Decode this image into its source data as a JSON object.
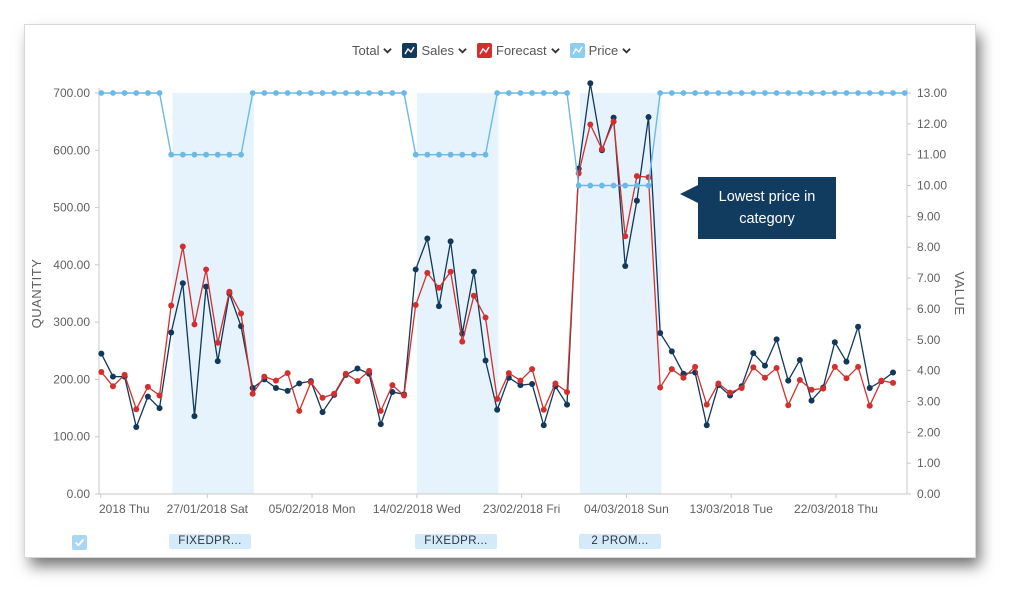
{
  "legend": {
    "total_label": "Total",
    "sales_label": "Sales",
    "forecast_label": "Forecast",
    "price_label": "Price",
    "icons": {
      "sales": "line-chart-icon",
      "forecast": "line-chart-icon",
      "price": "line-chart-icon",
      "chevron": "chevron-down-icon"
    }
  },
  "colors": {
    "sales": "#12385a",
    "forecast": "#d2302e",
    "price": "#6db9e6",
    "promo_band": "#e6f3fc",
    "annotation_bg": "#123c5f"
  },
  "annotation": {
    "line1": "Lowest price in",
    "line2": "category"
  },
  "promo_labels": [
    "FIXEDPR...",
    "FIXEDPR...",
    "2 PROM..."
  ],
  "chart_data": {
    "type": "line",
    "ylabel_left": "QUANTITY",
    "ylabel_right": "VALUE",
    "ylim_left": [
      0,
      700
    ],
    "ylim_right": [
      0,
      13
    ],
    "left_ticks": [
      "0.00",
      "100.00",
      "200.00",
      "300.00",
      "400.00",
      "500.00",
      "600.00",
      "700.00"
    ],
    "right_ticks": [
      "0.00",
      "1.00",
      "2.00",
      "3.00",
      "4.00",
      "5.00",
      "6.00",
      "7.00",
      "8.00",
      "9.00",
      "10.00",
      "11.00",
      "12.00",
      "13.00"
    ],
    "x_tick_labels": [
      {
        "x": 9.35,
        "label": "2018 Thu"
      },
      {
        "x": 18.5,
        "label": "27/01/2018 Sat"
      },
      {
        "x": 27.5,
        "label": "05/02/2018 Mon"
      },
      {
        "x": 36.5,
        "label": "14/02/2018 Wed"
      },
      {
        "x": 45.5,
        "label": "23/02/2018 Fri"
      },
      {
        "x": 54.5,
        "label": "04/03/2018 Sun"
      },
      {
        "x": 63.5,
        "label": "13/03/2018 Tue"
      },
      {
        "x": 72.5,
        "label": "22/03/2018 Thu"
      }
    ],
    "x_range": [
      9.2,
      78.6
    ],
    "promo_bands": [
      [
        15.5,
        22.5
      ],
      [
        36.5,
        43.5
      ],
      [
        50.5,
        57.5
      ]
    ],
    "series": [
      {
        "name": "Sales",
        "axis": "left",
        "values": [
          [
            9.4,
            245
          ],
          [
            10.4,
            205
          ],
          [
            11.4,
            205
          ],
          [
            12.4,
            117
          ],
          [
            13.4,
            170
          ],
          [
            14.4,
            150
          ],
          [
            15.4,
            282
          ],
          [
            16.4,
            368
          ],
          [
            17.4,
            136
          ],
          [
            18.4,
            362
          ],
          [
            19.4,
            232
          ],
          [
            20.4,
            350
          ],
          [
            21.4,
            293
          ],
          [
            22.4,
            185
          ],
          [
            23.4,
            200
          ],
          [
            24.4,
            185
          ],
          [
            25.4,
            180
          ],
          [
            26.4,
            193
          ],
          [
            27.4,
            197
          ],
          [
            28.4,
            143
          ],
          [
            29.4,
            173
          ],
          [
            30.4,
            208
          ],
          [
            31.4,
            219
          ],
          [
            32.4,
            210
          ],
          [
            33.4,
            122
          ],
          [
            34.4,
            178
          ],
          [
            35.4,
            174
          ],
          [
            36.4,
            392
          ],
          [
            37.4,
            446
          ],
          [
            38.4,
            328
          ],
          [
            39.4,
            441
          ],
          [
            40.4,
            280
          ],
          [
            41.4,
            388
          ],
          [
            42.4,
            233
          ],
          [
            43.4,
            147
          ],
          [
            44.4,
            203
          ],
          [
            45.4,
            190
          ],
          [
            46.4,
            192
          ],
          [
            47.4,
            120
          ],
          [
            48.4,
            188
          ],
          [
            49.4,
            156
          ],
          [
            50.4,
            568
          ],
          [
            51.4,
            717
          ],
          [
            52.4,
            600
          ],
          [
            53.4,
            657
          ],
          [
            54.4,
            398
          ],
          [
            55.4,
            512
          ],
          [
            56.4,
            658
          ],
          [
            57.4,
            281
          ],
          [
            58.4,
            249
          ],
          [
            59.4,
            210
          ],
          [
            60.4,
            212
          ],
          [
            61.4,
            120
          ],
          [
            62.4,
            190
          ],
          [
            63.4,
            172
          ],
          [
            64.4,
            188
          ],
          [
            65.4,
            246
          ],
          [
            66.4,
            224
          ],
          [
            67.4,
            270
          ],
          [
            68.4,
            198
          ],
          [
            69.4,
            234
          ],
          [
            70.4,
            163
          ],
          [
            71.4,
            186
          ],
          [
            72.4,
            265
          ],
          [
            73.4,
            231
          ],
          [
            74.4,
            292
          ],
          [
            75.4,
            185
          ],
          [
            76.4,
            197
          ],
          [
            77.4,
            212
          ]
        ]
      },
      {
        "name": "Forecast",
        "axis": "left",
        "values": [
          [
            9.4,
            213
          ],
          [
            10.4,
            188
          ],
          [
            11.4,
            208
          ],
          [
            12.4,
            148
          ],
          [
            13.4,
            187
          ],
          [
            14.4,
            172
          ],
          [
            15.4,
            329
          ],
          [
            16.4,
            432
          ],
          [
            17.4,
            296
          ],
          [
            18.4,
            392
          ],
          [
            19.4,
            264
          ],
          [
            20.4,
            353
          ],
          [
            21.4,
            315
          ],
          [
            22.4,
            175
          ],
          [
            23.4,
            205
          ],
          [
            24.4,
            198
          ],
          [
            25.4,
            211
          ],
          [
            26.4,
            145
          ],
          [
            27.4,
            195
          ],
          [
            28.4,
            168
          ],
          [
            29.4,
            175
          ],
          [
            30.4,
            210
          ],
          [
            31.4,
            197
          ],
          [
            32.4,
            215
          ],
          [
            33.4,
            145
          ],
          [
            34.4,
            190
          ],
          [
            35.4,
            172
          ],
          [
            36.4,
            330
          ],
          [
            37.4,
            386
          ],
          [
            38.4,
            360
          ],
          [
            39.4,
            388
          ],
          [
            40.4,
            266
          ],
          [
            41.4,
            346
          ],
          [
            42.4,
            308
          ],
          [
            43.4,
            166
          ],
          [
            44.4,
            211
          ],
          [
            45.4,
            198
          ],
          [
            46.4,
            218
          ],
          [
            47.4,
            147
          ],
          [
            48.4,
            193
          ],
          [
            49.4,
            178
          ],
          [
            50.4,
            560
          ],
          [
            51.4,
            645
          ],
          [
            52.4,
            602
          ],
          [
            53.4,
            650
          ],
          [
            54.4,
            450
          ],
          [
            55.4,
            555
          ],
          [
            56.4,
            553
          ],
          [
            57.4,
            186
          ],
          [
            58.4,
            218
          ],
          [
            59.4,
            203
          ],
          [
            60.4,
            222
          ],
          [
            61.4,
            156
          ],
          [
            62.4,
            193
          ],
          [
            63.4,
            177
          ],
          [
            64.4,
            185
          ],
          [
            65.4,
            221
          ],
          [
            66.4,
            203
          ],
          [
            67.4,
            220
          ],
          [
            68.4,
            155
          ],
          [
            69.4,
            199
          ],
          [
            70.4,
            182
          ],
          [
            71.4,
            184
          ],
          [
            72.4,
            222
          ],
          [
            73.4,
            202
          ],
          [
            74.4,
            222
          ],
          [
            75.4,
            154
          ],
          [
            76.4,
            198
          ],
          [
            77.4,
            194
          ]
        ]
      },
      {
        "name": "Price",
        "axis": "right",
        "values": [
          [
            9.4,
            13
          ],
          [
            10.4,
            13
          ],
          [
            11.4,
            13
          ],
          [
            12.4,
            13
          ],
          [
            13.4,
            13
          ],
          [
            14.4,
            13
          ],
          [
            15.4,
            11
          ],
          [
            16.4,
            11
          ],
          [
            17.4,
            11
          ],
          [
            18.4,
            11
          ],
          [
            19.4,
            11
          ],
          [
            20.4,
            11
          ],
          [
            21.4,
            11
          ],
          [
            22.4,
            13
          ],
          [
            23.4,
            13
          ],
          [
            24.4,
            13
          ],
          [
            25.4,
            13
          ],
          [
            26.4,
            13
          ],
          [
            27.4,
            13
          ],
          [
            28.4,
            13
          ],
          [
            29.4,
            13
          ],
          [
            30.4,
            13
          ],
          [
            31.4,
            13
          ],
          [
            32.4,
            13
          ],
          [
            33.4,
            13
          ],
          [
            34.4,
            13
          ],
          [
            35.4,
            13
          ],
          [
            36.4,
            11
          ],
          [
            37.4,
            11
          ],
          [
            38.4,
            11
          ],
          [
            39.4,
            11
          ],
          [
            40.4,
            11
          ],
          [
            41.4,
            11
          ],
          [
            42.4,
            11
          ],
          [
            43.4,
            13
          ],
          [
            44.4,
            13
          ],
          [
            45.4,
            13
          ],
          [
            46.4,
            13
          ],
          [
            47.4,
            13
          ],
          [
            48.4,
            13
          ],
          [
            49.4,
            13
          ],
          [
            50.4,
            10
          ],
          [
            51.4,
            10
          ],
          [
            52.4,
            10
          ],
          [
            53.4,
            10
          ],
          [
            54.4,
            10
          ],
          [
            55.4,
            10
          ],
          [
            56.4,
            10
          ],
          [
            57.4,
            13
          ],
          [
            58.4,
            13
          ],
          [
            59.4,
            13
          ],
          [
            60.4,
            13
          ],
          [
            61.4,
            13
          ],
          [
            62.4,
            13
          ],
          [
            63.4,
            13
          ],
          [
            64.4,
            13
          ],
          [
            65.4,
            13
          ],
          [
            66.4,
            13
          ],
          [
            67.4,
            13
          ],
          [
            68.4,
            13
          ],
          [
            69.4,
            13
          ],
          [
            70.4,
            13
          ],
          [
            71.4,
            13
          ],
          [
            72.4,
            13
          ],
          [
            73.4,
            13
          ],
          [
            74.4,
            13
          ],
          [
            75.4,
            13
          ],
          [
            76.4,
            13
          ],
          [
            77.4,
            13
          ],
          [
            78.4,
            13
          ]
        ]
      }
    ]
  }
}
